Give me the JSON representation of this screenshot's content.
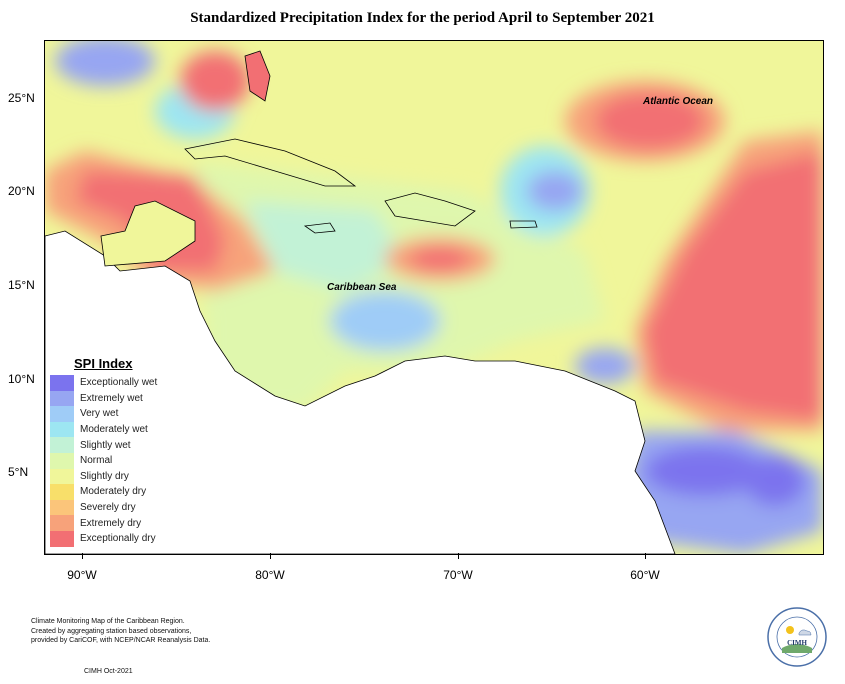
{
  "title": "Standardized Precipitation Index for the period April to September 2021",
  "labels": {
    "ocean": "Atlantic Ocean",
    "sea": "Caribbean Sea"
  },
  "axes": {
    "x_ticks": [
      "90°W",
      "80°W",
      "70°W",
      "60°W"
    ],
    "y_ticks": [
      "25°N",
      "20°N",
      "15°N",
      "10°N",
      "5°N"
    ]
  },
  "legend": {
    "title": "SPI Index",
    "items": [
      {
        "label": "Exceptionally wet",
        "color": "#7b73ee"
      },
      {
        "label": "Extremely wet",
        "color": "#97a6f2"
      },
      {
        "label": "Very wet",
        "color": "#9fccf7"
      },
      {
        "label": "Moderately wet",
        "color": "#9de6f2"
      },
      {
        "label": "Slightly wet",
        "color": "#c2f2d6"
      },
      {
        "label": "Normal",
        "color": "#dff7ad"
      },
      {
        "label": "Slightly dry",
        "color": "#f0f69a"
      },
      {
        "label": "Moderately dry",
        "color": "#f8df6a"
      },
      {
        "label": "Severely dry",
        "color": "#fbc57a"
      },
      {
        "label": "Extremely dry",
        "color": "#f7a27a"
      },
      {
        "label": "Exceptionally dry",
        "color": "#f26f73"
      }
    ]
  },
  "footer": {
    "lines": [
      "Climate Monitoring Map of the Caribbean Region.",
      "Created by aggregating station based observations,",
      "provided by CariCOF, with NCEP/NCAR Reanalysis Data."
    ],
    "date": "CIMH Oct-2021"
  },
  "logo": {
    "name": "CIMH",
    "ring_text": "Caribbean Institute for Meteorology and Hydrology"
  }
}
